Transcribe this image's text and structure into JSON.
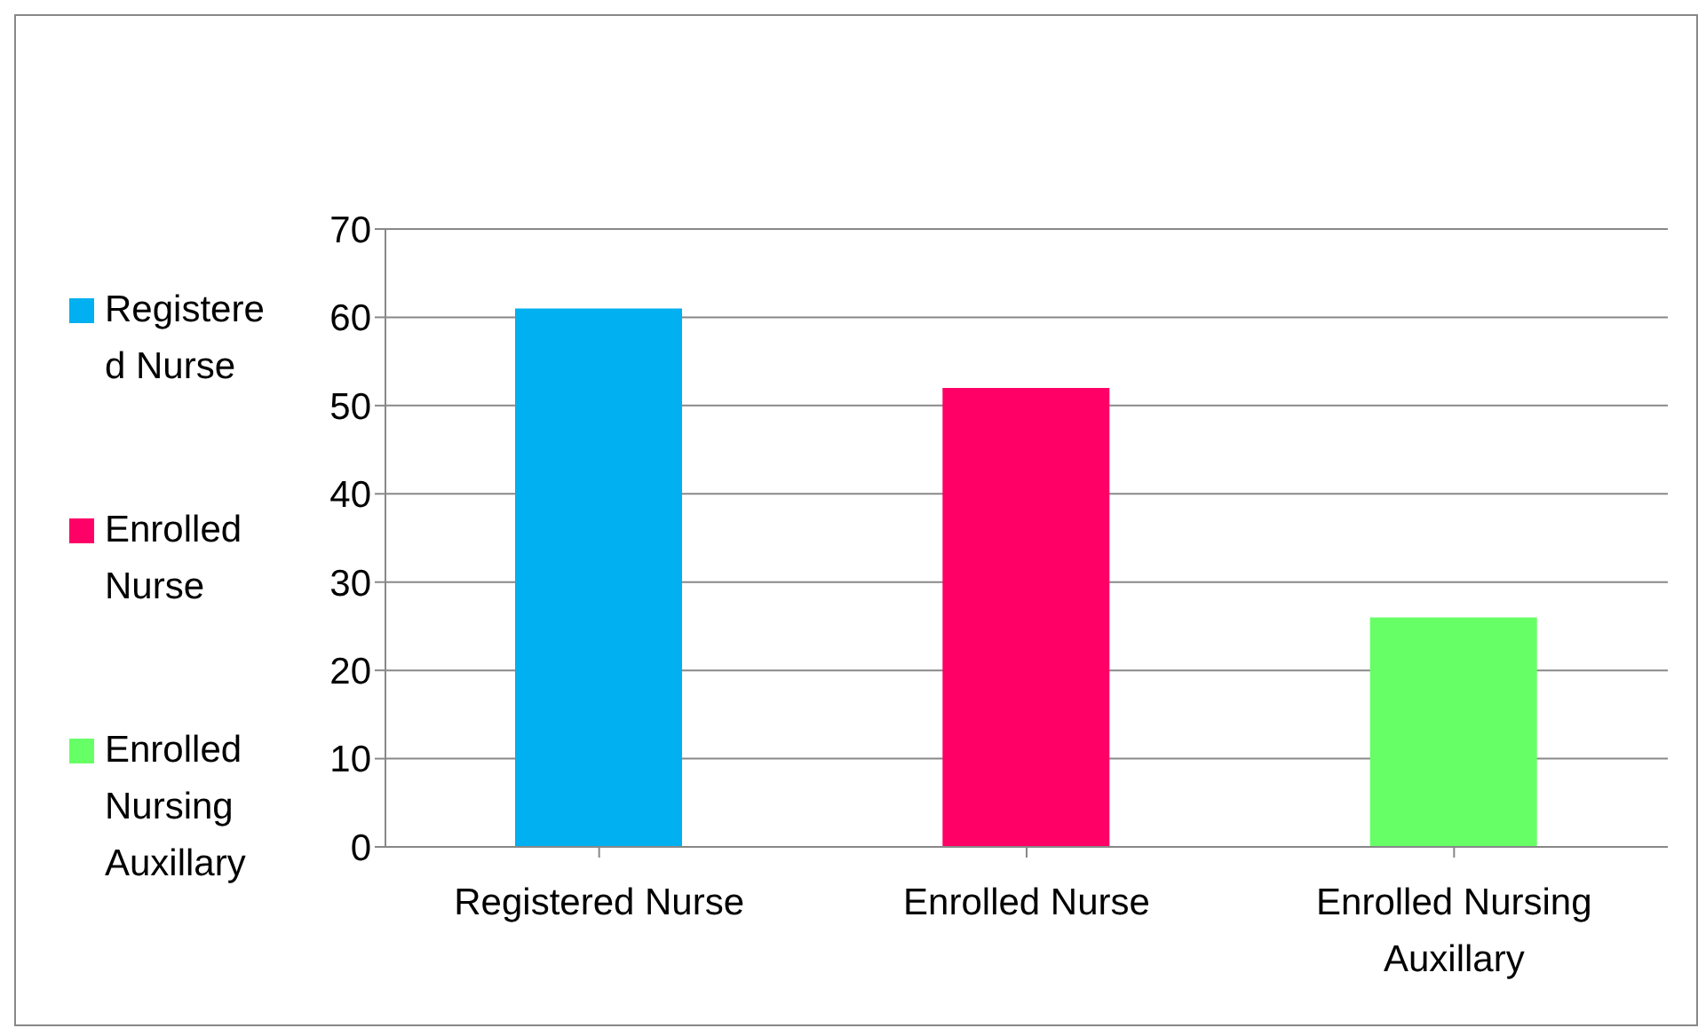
{
  "chart_data": {
    "type": "bar",
    "stacked": true,
    "categories": [
      "Registered Nurse",
      "Enrolled Nurse",
      "Enrolled Nursing Auxillary"
    ],
    "series": [
      {
        "name": "Registered Nurse",
        "color": "#00b0f0",
        "values": [
          61,
          null,
          null
        ]
      },
      {
        "name": "Enrolled Nurse",
        "color": "#ff0066",
        "values": [
          null,
          52,
          null
        ]
      },
      {
        "name": "Enrolled Nursing Auxillary",
        "color": "#66ff66",
        "values": [
          null,
          null,
          26
        ]
      }
    ],
    "ylim": [
      0,
      70
    ],
    "yticks": [
      0,
      10,
      20,
      30,
      40,
      50,
      60,
      70
    ],
    "grid": "y",
    "legend": "left"
  }
}
